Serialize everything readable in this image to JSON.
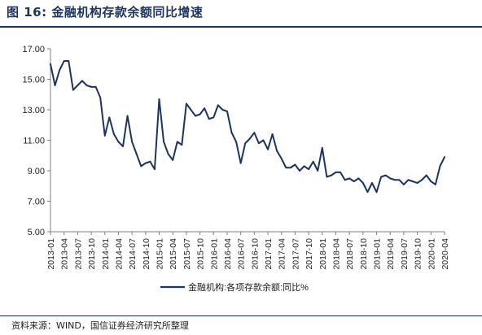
{
  "figure": {
    "title": "图 16:  金融机构存款余额同比增速",
    "source": "资料来源：WIND，国信证券经济研究所整理"
  },
  "colors": {
    "series": "#1c355e",
    "axis": "#7f7f7f",
    "title": "#1c355e"
  },
  "chart_data": {
    "type": "line",
    "title": "",
    "xlabel": "",
    "ylabel": "",
    "ylim": [
      5.0,
      17.0
    ],
    "yticks": [
      "5.00",
      "7.00",
      "9.00",
      "11.00",
      "13.00",
      "15.00",
      "17.00"
    ],
    "grid": false,
    "legend_position": "bottom",
    "x_tick_labels": [
      "2013-01",
      "2013-04",
      "2013-07",
      "2013-10",
      "2014-01",
      "2014-04",
      "2014-07",
      "2014-10",
      "2015-01",
      "2015-04",
      "2015-07",
      "2015-10",
      "2016-01",
      "2016-04",
      "2016-07",
      "2016-10",
      "2017-01",
      "2017-04",
      "2017-07",
      "2017-10",
      "2018-01",
      "2018-04",
      "2018-07",
      "2018-10",
      "2019-01",
      "2019-04",
      "2019-07",
      "2019-10",
      "2020-01",
      "2020-04"
    ],
    "x": [
      "2013-01",
      "2013-02",
      "2013-03",
      "2013-04",
      "2013-05",
      "2013-06",
      "2013-07",
      "2013-08",
      "2013-09",
      "2013-10",
      "2013-11",
      "2013-12",
      "2014-01",
      "2014-02",
      "2014-03",
      "2014-04",
      "2014-05",
      "2014-06",
      "2014-07",
      "2014-08",
      "2014-09",
      "2014-10",
      "2014-11",
      "2014-12",
      "2015-01",
      "2015-02",
      "2015-03",
      "2015-04",
      "2015-05",
      "2015-06",
      "2015-07",
      "2015-08",
      "2015-09",
      "2015-10",
      "2015-11",
      "2015-12",
      "2016-01",
      "2016-02",
      "2016-03",
      "2016-04",
      "2016-05",
      "2016-06",
      "2016-07",
      "2016-08",
      "2016-09",
      "2016-10",
      "2016-11",
      "2016-12",
      "2017-01",
      "2017-02",
      "2017-03",
      "2017-04",
      "2017-05",
      "2017-06",
      "2017-07",
      "2017-08",
      "2017-09",
      "2017-10",
      "2017-11",
      "2017-12",
      "2018-01",
      "2018-02",
      "2018-03",
      "2018-04",
      "2018-05",
      "2018-06",
      "2018-07",
      "2018-08",
      "2018-09",
      "2018-10",
      "2018-11",
      "2018-12",
      "2019-01",
      "2019-02",
      "2019-03",
      "2019-04",
      "2019-05",
      "2019-06",
      "2019-07",
      "2019-08",
      "2019-09",
      "2019-10",
      "2019-11",
      "2019-12",
      "2020-01",
      "2020-02",
      "2020-03",
      "2020-04"
    ],
    "series": [
      {
        "name": "金融机构:各项存款余额:同比%",
        "values": [
          16.0,
          14.6,
          15.6,
          16.2,
          16.2,
          14.3,
          14.6,
          14.9,
          14.6,
          14.5,
          14.5,
          13.8,
          11.3,
          12.5,
          11.4,
          10.9,
          10.6,
          12.6,
          10.9,
          10.1,
          9.3,
          9.5,
          9.6,
          9.1,
          13.7,
          10.9,
          10.1,
          9.7,
          10.9,
          10.7,
          13.4,
          13.0,
          12.6,
          12.7,
          13.1,
          12.4,
          12.5,
          13.3,
          13.0,
          12.9,
          11.5,
          10.9,
          9.5,
          10.8,
          11.1,
          11.5,
          10.8,
          11.0,
          10.4,
          11.4,
          10.3,
          9.8,
          9.2,
          9.2,
          9.4,
          9.0,
          9.3,
          9.1,
          9.6,
          9.0,
          10.5,
          8.6,
          8.7,
          8.9,
          8.9,
          8.4,
          8.5,
          8.3,
          8.5,
          8.2,
          7.6,
          8.2,
          7.6,
          8.6,
          8.7,
          8.5,
          8.4,
          8.4,
          8.1,
          8.4,
          8.3,
          8.2,
          8.4,
          8.7,
          8.3,
          8.1,
          9.3,
          9.9
        ]
      }
    ]
  }
}
